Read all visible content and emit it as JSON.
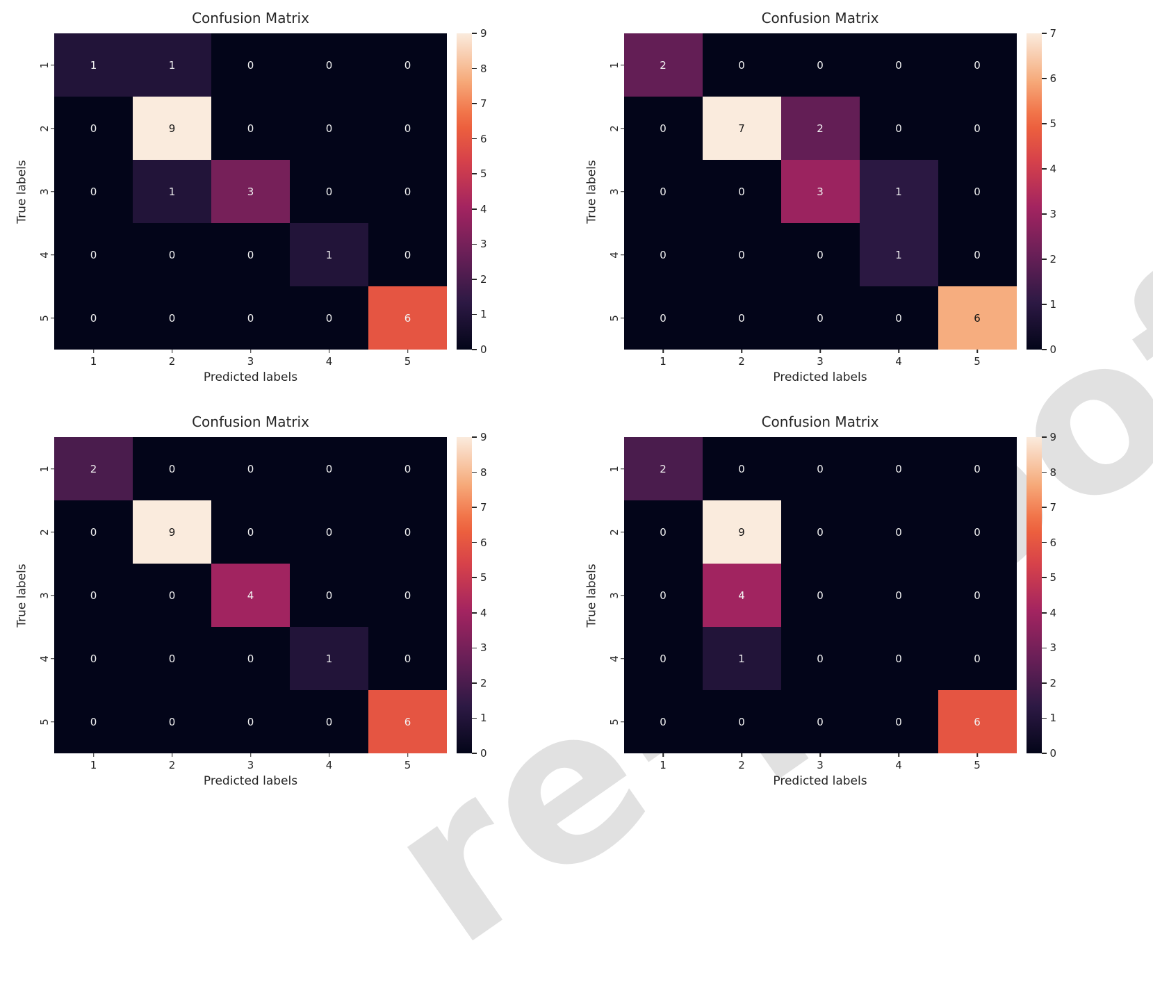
{
  "watermark": {
    "text": "re-proofs"
  },
  "figure": {
    "background": "#ffffff",
    "text_color": "#262626"
  },
  "colormap": {
    "name": "rocket",
    "stops": [
      {
        "t": 0.0,
        "color": "#030519"
      },
      {
        "t": 0.15,
        "color": "#2D1944"
      },
      {
        "t": 0.3,
        "color": "#691F57"
      },
      {
        "t": 0.45,
        "color": "#A32460"
      },
      {
        "t": 0.6,
        "color": "#D7424A"
      },
      {
        "t": 0.72,
        "color": "#F0653C"
      },
      {
        "t": 0.85,
        "color": "#F6AA7A"
      },
      {
        "t": 1.0,
        "color": "#FAEBDD"
      }
    ]
  },
  "chart_data": [
    {
      "type": "heatmap",
      "title": "Confusion Matrix",
      "xlabel": "Predicted labels",
      "ylabel": "True labels",
      "x_ticks": [
        "1",
        "2",
        "3",
        "4",
        "5"
      ],
      "y_ticks": [
        "1",
        "2",
        "3",
        "4",
        "5"
      ],
      "vmin": 0,
      "vmax": 9,
      "colorbar_ticks": [
        9,
        8,
        7,
        6,
        5,
        4,
        3,
        2,
        1,
        0
      ],
      "matrix": [
        [
          1,
          1,
          0,
          0,
          0
        ],
        [
          0,
          9,
          0,
          0,
          0
        ],
        [
          0,
          1,
          3,
          0,
          0
        ],
        [
          0,
          0,
          0,
          1,
          0
        ],
        [
          0,
          0,
          0,
          0,
          6
        ]
      ]
    },
    {
      "type": "heatmap",
      "title": "Confusion Matrix",
      "xlabel": "Predicted labels",
      "ylabel": "True labels",
      "x_ticks": [
        "1",
        "2",
        "3",
        "4",
        "5"
      ],
      "y_ticks": [
        "1",
        "2",
        "3",
        "4",
        "5"
      ],
      "vmin": 0,
      "vmax": 7,
      "colorbar_ticks": [
        7,
        6,
        5,
        4,
        3,
        2,
        1,
        0
      ],
      "matrix": [
        [
          2,
          0,
          0,
          0,
          0
        ],
        [
          0,
          7,
          2,
          0,
          0
        ],
        [
          0,
          0,
          3,
          1,
          0
        ],
        [
          0,
          0,
          0,
          1,
          0
        ],
        [
          0,
          0,
          0,
          0,
          6
        ]
      ]
    },
    {
      "type": "heatmap",
      "title": "Confusion Matrix",
      "xlabel": "Predicted labels",
      "ylabel": "True labels",
      "x_ticks": [
        "1",
        "2",
        "3",
        "4",
        "5"
      ],
      "y_ticks": [
        "1",
        "2",
        "3",
        "4",
        "5"
      ],
      "vmin": 0,
      "vmax": 9,
      "colorbar_ticks": [
        9,
        8,
        7,
        6,
        5,
        4,
        3,
        2,
        1,
        0
      ],
      "matrix": [
        [
          2,
          0,
          0,
          0,
          0
        ],
        [
          0,
          9,
          0,
          0,
          0
        ],
        [
          0,
          0,
          4,
          0,
          0
        ],
        [
          0,
          0,
          0,
          1,
          0
        ],
        [
          0,
          0,
          0,
          0,
          6
        ]
      ]
    },
    {
      "type": "heatmap",
      "title": "Confusion Matrix",
      "xlabel": "Predicted labels",
      "ylabel": "True labels",
      "x_ticks": [
        "1",
        "2",
        "3",
        "4",
        "5"
      ],
      "y_ticks": [
        "1",
        "2",
        "3",
        "4",
        "5"
      ],
      "vmin": 0,
      "vmax": 9,
      "colorbar_ticks": [
        9,
        8,
        7,
        6,
        5,
        4,
        3,
        2,
        1,
        0
      ],
      "matrix": [
        [
          2,
          0,
          0,
          0,
          0
        ],
        [
          0,
          9,
          0,
          0,
          0
        ],
        [
          0,
          4,
          0,
          0,
          0
        ],
        [
          0,
          1,
          0,
          0,
          0
        ],
        [
          0,
          0,
          0,
          0,
          6
        ]
      ]
    }
  ]
}
